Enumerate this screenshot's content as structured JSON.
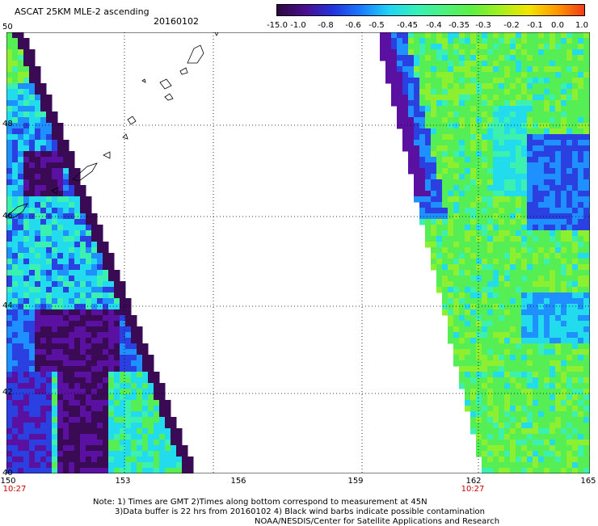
{
  "header": {
    "title": "ASCAT 25KM MLE-2 ascending",
    "date": "20160102"
  },
  "colorbar": {
    "labels": [
      "-15.0",
      "-1.0",
      "-0.8",
      "-0.6",
      "-0.5",
      "-0.45",
      "-0.4",
      "-0.35",
      "-0.3",
      "-0.2",
      "-0.1",
      "0.0",
      "1.0"
    ],
    "colors": [
      "#2b0a3d",
      "#4a0e8f",
      "#2233dd",
      "#1a7bff",
      "#1fd4f4",
      "#36f0b8",
      "#4cf27a",
      "#5ef040",
      "#a4f01c",
      "#f2e600",
      "#ff9a00",
      "#f23c14"
    ]
  },
  "axes": {
    "lat_labels": [
      "50",
      "48",
      "46",
      "44",
      "42",
      "40"
    ],
    "lon_labels": [
      "150",
      "153",
      "156",
      "159",
      "162",
      "165"
    ],
    "time_labels": [
      "10:27",
      "10:27"
    ]
  },
  "notes": {
    "line1": "Note: 1) Times are GMT 2)Times along bottom correspond to measurement at 45N",
    "line2": "3)Data buffer is 22 hrs from 20160102 4) Black wind barbs indicate possible contamination",
    "line3": "NOAA/NESDIS/Center for Satellite Applications and Research"
  },
  "map_colors": {
    "dark": "#3a0a55",
    "purple": "#5a10a0",
    "blue": "#2a40e0",
    "lightblue": "#1e90ff",
    "cyan": "#22dcee",
    "teal": "#3cf0b0",
    "green": "#55ee55",
    "lime": "#8cf030"
  }
}
